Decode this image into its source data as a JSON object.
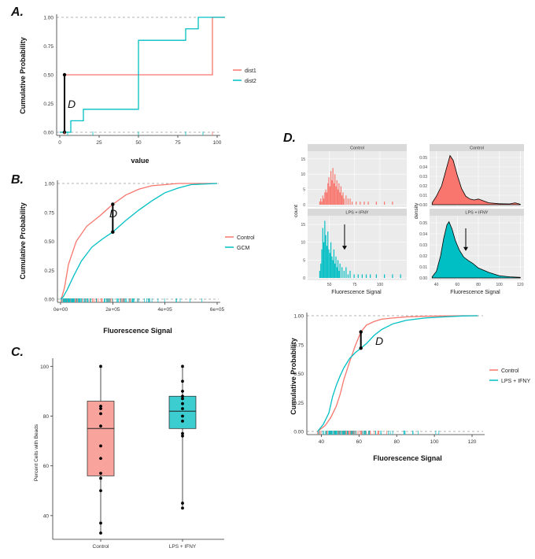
{
  "colors": {
    "red": "#f8766d",
    "teal": "#00bfc4",
    "facet_bg": "#ebebeb",
    "facet_strip": "#d9d9d9",
    "grid": "#ffffff",
    "dash": "#9a9a9a"
  },
  "panels": {
    "a": {
      "letter": "A.",
      "xlabel": "value",
      "ylabel": "Cumulative Probability",
      "d_label": "D",
      "legend": [
        "dist1",
        "dist2"
      ],
      "xticks": [
        "0",
        "25",
        "50",
        "75",
        "100"
      ],
      "yticks": [
        "0.00",
        "0.25",
        "0.50",
        "0.75",
        "1.00"
      ]
    },
    "b": {
      "letter": "B.",
      "xlabel": "Fluorescence Signal",
      "ylabel": "Cumulative Probability",
      "d_label": "D",
      "legend": [
        "Control",
        "GCM"
      ],
      "xticks": [
        "0e+00",
        "2e+05",
        "4e+05",
        "6e+05"
      ],
      "yticks": [
        "0.00",
        "0.25",
        "0.50",
        "0.75",
        "1.00"
      ]
    },
    "c": {
      "letter": "C.",
      "ylabel": "Percent Cells with Beads",
      "categories": [
        "Control",
        "LPS + IFNY"
      ],
      "yticks": [
        "40",
        "60",
        "80",
        "100"
      ]
    },
    "d": {
      "letter": "D.",
      "xlabel": "Fluorescence Signal",
      "ylabel": "Cumulative Probability",
      "d_label": "D",
      "legend": [
        "Control",
        "LPS + IFNY"
      ],
      "xticks": [
        "40",
        "60",
        "80",
        "100",
        "120"
      ],
      "yticks": [
        "0.00",
        "0.25",
        "0.50",
        "0.75",
        "1.00"
      ],
      "facets": [
        "Control",
        "LPS + IFNY"
      ],
      "hist_ylabel": "count",
      "dens_ylabel": "density",
      "hist_xlabel": "Fluorescence Signal",
      "dens_xlabel": "Fluorescence Signal",
      "hist_xticks": [
        "50",
        "75",
        "100"
      ],
      "hist_yticks": [
        "0",
        "5",
        "10",
        "15"
      ],
      "dens_xticks": [
        "40",
        "60",
        "80",
        "100",
        "120"
      ],
      "dens_yticks": [
        "0.00",
        "0.01",
        "0.02",
        "0.03",
        "0.04",
        "0.05"
      ]
    }
  },
  "chart_data": [
    {
      "id": "A",
      "type": "line",
      "step": true,
      "xlabel": "value",
      "ylabel": "Cumulative Probability",
      "xlim": [
        0,
        100
      ],
      "ylim": [
        0,
        1
      ],
      "series": [
        {
          "name": "dist1",
          "x": [
            0,
            3,
            3,
            97,
            97,
            105
          ],
          "y": [
            0,
            0,
            0.5,
            0.5,
            1,
            1
          ]
        },
        {
          "name": "dist2",
          "x": [
            0,
            7,
            7,
            15,
            15,
            22,
            22,
            50,
            50,
            70,
            70,
            80,
            80,
            88,
            88,
            105
          ],
          "y": [
            0,
            0,
            0.1,
            0.1,
            0.2,
            0.2,
            0.2,
            0.2,
            0.8,
            0.8,
            0.8,
            0.8,
            0.9,
            0.9,
            1,
            1
          ]
        }
      ],
      "annotation": {
        "label": "D",
        "x": 3,
        "y_from": 0,
        "y_to": 0.5
      }
    },
    {
      "id": "B",
      "type": "line",
      "xlabel": "Fluorescence Signal",
      "ylabel": "Cumulative Probability",
      "xlim": [
        0,
        600000
      ],
      "ylim": [
        0,
        1
      ],
      "series": [
        {
          "name": "Control",
          "x": [
            0,
            5000,
            15000,
            30000,
            60000,
            100000,
            150000,
            200000,
            250000,
            300000,
            350000,
            400000,
            450000,
            500000,
            600000
          ],
          "y": [
            0,
            0.02,
            0.1,
            0.3,
            0.5,
            0.63,
            0.72,
            0.82,
            0.9,
            0.95,
            0.98,
            0.99,
            1,
            1,
            1
          ]
        },
        {
          "name": "GCM",
          "x": [
            0,
            10000,
            25000,
            50000,
            80000,
            120000,
            160000,
            200000,
            250000,
            300000,
            350000,
            400000,
            450000,
            500000,
            600000
          ],
          "y": [
            0,
            0.02,
            0.08,
            0.2,
            0.33,
            0.45,
            0.52,
            0.58,
            0.68,
            0.77,
            0.85,
            0.92,
            0.96,
            0.99,
            1
          ]
        }
      ],
      "annotation": {
        "label": "D",
        "x": 200000,
        "y_from": 0.58,
        "y_to": 0.82
      }
    },
    {
      "id": "C",
      "type": "box",
      "ylabel": "Percent Cells with Beads",
      "ylim": [
        33,
        102
      ],
      "categories": [
        "Control",
        "LPS + IFNY"
      ],
      "boxes": [
        {
          "name": "Control",
          "q1": 56,
          "median": 75,
          "q3": 86,
          "min": 33,
          "max": 100,
          "points": [
            100,
            84,
            83,
            81,
            76,
            68,
            63,
            57,
            55,
            50,
            37,
            33
          ]
        },
        {
          "name": "LPS + IFNY",
          "q1": 75,
          "median": 82,
          "q3": 88,
          "min": 43,
          "max": 100,
          "points": [
            100,
            94,
            90,
            88,
            87,
            85,
            83,
            80,
            78,
            73,
            72,
            45,
            43
          ]
        }
      ]
    },
    {
      "id": "D-hist",
      "type": "bar",
      "facets": [
        "Control",
        "LPS + IFNY"
      ],
      "xlabel": "Fluorescence Signal",
      "ylabel": "count",
      "xlim": [
        30,
        125
      ],
      "ylim": [
        0,
        17
      ],
      "series": [
        {
          "name": "Control",
          "x": [
            40,
            41,
            42,
            43,
            44,
            45,
            46,
            47,
            48,
            49,
            50,
            51,
            52,
            53,
            54,
            55,
            56,
            57,
            58,
            59,
            60,
            61,
            62,
            63,
            64,
            66,
            68,
            70,
            72,
            76,
            80,
            84,
            88,
            96,
            104,
            112
          ],
          "values": [
            1,
            2,
            1,
            3,
            2,
            4,
            5,
            4,
            7,
            9,
            6,
            11,
            8,
            12,
            7,
            10,
            6,
            8,
            5,
            7,
            4,
            6,
            3,
            4,
            2,
            3,
            2,
            2,
            1,
            1,
            1,
            1,
            1,
            1,
            1,
            1
          ]
        },
        {
          "name": "LPS + IFNY",
          "x": [
            40,
            41,
            42,
            43,
            44,
            45,
            46,
            47,
            48,
            49,
            50,
            51,
            52,
            53,
            54,
            55,
            56,
            57,
            58,
            59,
            60,
            62,
            64,
            66,
            68,
            70,
            74,
            78,
            82,
            86,
            90,
            96,
            104,
            112,
            120
          ],
          "values": [
            2,
            4,
            8,
            14,
            10,
            16,
            12,
            9,
            13,
            8,
            7,
            10,
            6,
            5,
            8,
            4,
            6,
            3,
            5,
            2,
            4,
            3,
            2,
            3,
            1,
            2,
            1,
            1,
            1,
            1,
            1,
            1,
            1,
            1,
            1
          ]
        }
      ],
      "arrow_x": 65
    },
    {
      "id": "D-density",
      "type": "area",
      "facets": [
        "Control",
        "LPS + IFNY"
      ],
      "xlabel": "Fluorescence Signal",
      "ylabel": "density",
      "xlim": [
        35,
        122
      ],
      "ylim": [
        0,
        0.055
      ],
      "series": [
        {
          "name": "Control",
          "x": [
            36,
            40,
            45,
            48,
            51,
            53,
            56,
            60,
            64,
            68,
            72,
            76,
            80,
            85,
            90,
            100,
            110,
            115,
            120
          ],
          "y": [
            0.002,
            0.009,
            0.02,
            0.032,
            0.044,
            0.052,
            0.047,
            0.031,
            0.017,
            0.009,
            0.006,
            0.005,
            0.006,
            0.004,
            0.002,
            0.001,
            0.0008,
            0.002,
            0.0005
          ]
        },
        {
          "name": "LPS + IFNY",
          "x": [
            36,
            40,
            44,
            47,
            50,
            52,
            55,
            58,
            62,
            66,
            70,
            75,
            80,
            90,
            100,
            110,
            120
          ],
          "y": [
            0.001,
            0.006,
            0.02,
            0.036,
            0.048,
            0.051,
            0.044,
            0.034,
            0.025,
            0.019,
            0.016,
            0.013,
            0.009,
            0.005,
            0.002,
            0.001,
            0.0005
          ]
        }
      ],
      "arrow_x": 68
    },
    {
      "id": "D-ecdf",
      "type": "line",
      "xlabel": "Fluorescence Signal",
      "ylabel": "Cumulative Probability",
      "xlim": [
        34,
        125
      ],
      "ylim": [
        0,
        1
      ],
      "series": [
        {
          "name": "Control",
          "x": [
            38,
            42,
            45,
            48,
            50,
            52,
            55,
            58,
            61,
            64,
            68,
            72,
            78,
            85,
            95,
            105,
            115,
            123
          ],
          "y": [
            0,
            0.05,
            0.12,
            0.22,
            0.32,
            0.45,
            0.6,
            0.74,
            0.86,
            0.92,
            0.95,
            0.97,
            0.98,
            0.99,
            0.995,
            0.998,
            1,
            1
          ]
        },
        {
          "name": "LPS + IFNY",
          "x": [
            38,
            41,
            44,
            46,
            48,
            50,
            52,
            55,
            58,
            61,
            64,
            68,
            72,
            78,
            85,
            95,
            105,
            115,
            123
          ],
          "y": [
            0,
            0.06,
            0.16,
            0.3,
            0.4,
            0.48,
            0.55,
            0.63,
            0.68,
            0.72,
            0.76,
            0.83,
            0.88,
            0.93,
            0.96,
            0.98,
            0.99,
            0.998,
            1
          ]
        }
      ],
      "annotation": {
        "label": "D",
        "x": 61,
        "y_from": 0.72,
        "y_to": 0.86
      }
    }
  ]
}
